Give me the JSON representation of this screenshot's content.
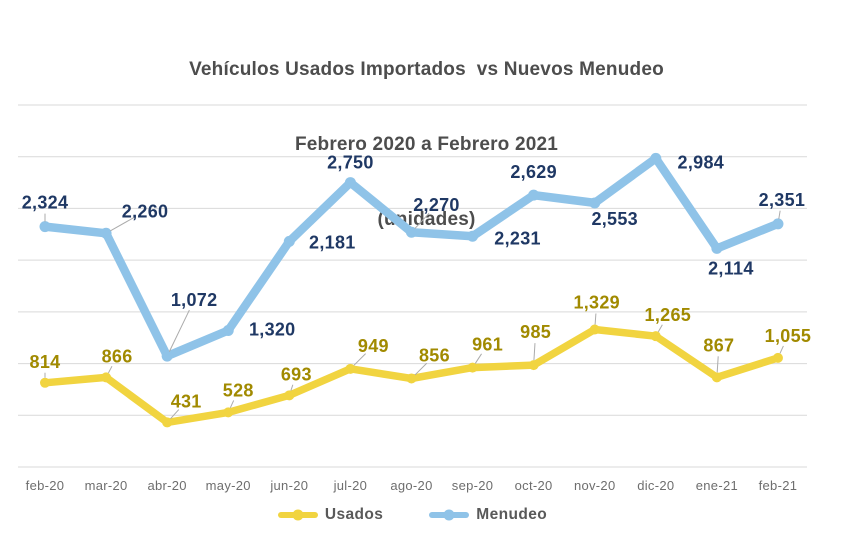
{
  "title": {
    "line1": "Vehículos Usados Importados  vs Nuevos Menudeo",
    "line2": "Febrero 2020 a Febrero 2021",
    "line3": "(unidades)"
  },
  "legend": {
    "items": [
      {
        "label": "Usados",
        "color": "#F1D440"
      },
      {
        "label": "Menudeo",
        "color": "#8FC3E8"
      }
    ]
  },
  "chart_data": {
    "type": "line",
    "title": "Vehículos Usados Importados vs Nuevos Menudeo",
    "subtitle": "Febrero 2020 a Febrero 2021 (unidades)",
    "categories": [
      "feb-20",
      "mar-20",
      "abr-20",
      "may-20",
      "jun-20",
      "jul-20",
      "ago-20",
      "sep-20",
      "oct-20",
      "nov-20",
      "dic-20",
      "ene-21",
      "feb-21"
    ],
    "series": [
      {
        "name": "Usados",
        "color": "#F1D440",
        "label_color": "#A18A00",
        "values": [
          814,
          866,
          431,
          528,
          693,
          949,
          856,
          961,
          985,
          1329,
          1265,
          867,
          1055
        ]
      },
      {
        "name": "Menudeo",
        "color": "#8FC3E8",
        "label_color": "#1F3864",
        "values": [
          2324,
          2260,
          1072,
          1320,
          2181,
          2750,
          2270,
          2231,
          2629,
          2553,
          2984,
          2114,
          2351
        ]
      }
    ],
    "ylim": [
      0,
      3500
    ],
    "y_gridline_step": 500,
    "y_axis_labels_visible": false,
    "grid": "horizontal",
    "gridline_color": "#D9D9D9",
    "show_data_labels": true,
    "number_format": "#,###",
    "legend_position": "bottom"
  }
}
